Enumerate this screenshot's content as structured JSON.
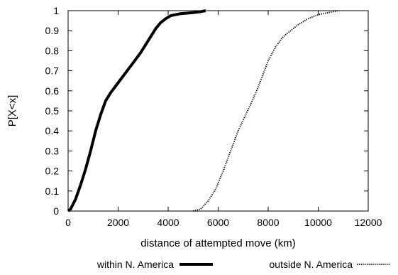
{
  "chart_data": {
    "type": "line",
    "title": "",
    "xlabel": "distance of attempted move (km)",
    "ylabel": "P[X<x]",
    "xlim": [
      0,
      12000
    ],
    "ylim": [
      0,
      1
    ],
    "x_ticks": [
      "0",
      "2000",
      "4000",
      "6000",
      "8000",
      "10000",
      "12000"
    ],
    "y_ticks": [
      "0",
      "0.1",
      "0.2",
      "0.3",
      "0.4",
      "0.5",
      "0.6",
      "0.7",
      "0.8",
      "0.9",
      "1"
    ],
    "grid": false,
    "legend_position": "bottom",
    "series": [
      {
        "name": "within N. America",
        "style": "solid-thick",
        "color": "#000000",
        "points": [
          [
            0,
            0
          ],
          [
            100,
            0.01
          ],
          [
            300,
            0.06
          ],
          [
            500,
            0.13
          ],
          [
            700,
            0.21
          ],
          [
            900,
            0.3
          ],
          [
            1100,
            0.4
          ],
          [
            1300,
            0.48
          ],
          [
            1500,
            0.55
          ],
          [
            1700,
            0.59
          ],
          [
            2000,
            0.64
          ],
          [
            2300,
            0.69
          ],
          [
            2600,
            0.74
          ],
          [
            2900,
            0.79
          ],
          [
            3200,
            0.85
          ],
          [
            3500,
            0.91
          ],
          [
            3700,
            0.94
          ],
          [
            3900,
            0.96
          ],
          [
            4100,
            0.975
          ],
          [
            4500,
            0.985
          ],
          [
            5000,
            0.99
          ],
          [
            5300,
            0.995
          ],
          [
            5500,
            1.0
          ]
        ]
      },
      {
        "name": "outside N. America",
        "style": "dotted",
        "color": "#000000",
        "points": [
          [
            5000,
            0
          ],
          [
            5300,
            0.01
          ],
          [
            5600,
            0.05
          ],
          [
            5900,
            0.11
          ],
          [
            6200,
            0.2
          ],
          [
            6500,
            0.3
          ],
          [
            6800,
            0.4
          ],
          [
            7100,
            0.48
          ],
          [
            7400,
            0.56
          ],
          [
            7700,
            0.65
          ],
          [
            8000,
            0.75
          ],
          [
            8300,
            0.82
          ],
          [
            8600,
            0.87
          ],
          [
            8900,
            0.9
          ],
          [
            9200,
            0.93
          ],
          [
            9600,
            0.96
          ],
          [
            10000,
            0.98
          ],
          [
            10400,
            0.99
          ],
          [
            10800,
            1.0
          ]
        ]
      }
    ]
  }
}
